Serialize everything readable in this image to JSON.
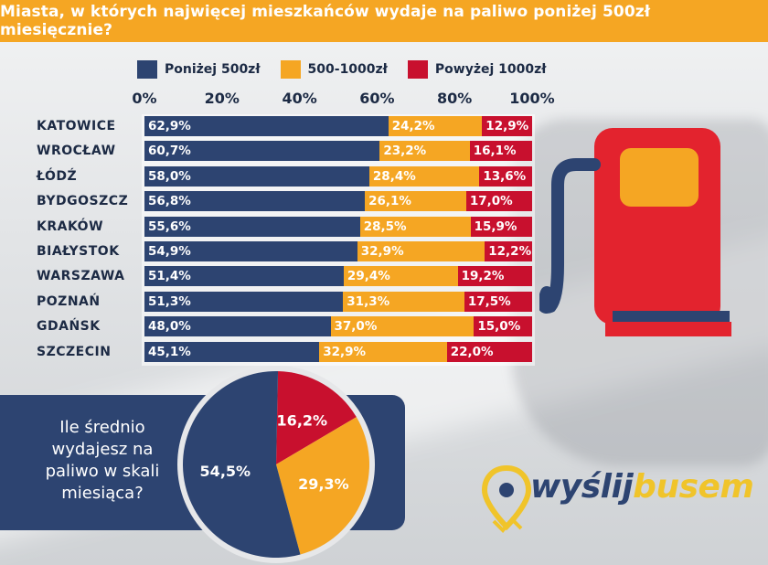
{
  "title": "Miasta, w których najwięcej mieszkańców wydaje na paliwo poniżej 500zł miesięcznie?",
  "colors": {
    "below500": "#2d4471",
    "mid": "#f5a623",
    "above1000": "#c8102e",
    "header": "#f5a623"
  },
  "chart_data": [
    {
      "type": "bar",
      "orientation": "horizontal-stacked-100",
      "categories": [
        "KATOWICE",
        "WROCŁAW",
        "ŁÓDŹ",
        "BYDGOSZCZ",
        "KRAKÓW",
        "BIAŁYSTOK",
        "WARSZAWA",
        "POZNAŃ",
        "GDAŃSK",
        "SZCZECIN"
      ],
      "series": [
        {
          "name": "Poniżej 500zł",
          "values": [
            62.9,
            60.7,
            58.0,
            56.8,
            55.6,
            54.9,
            51.4,
            51.3,
            48.0,
            45.1
          ],
          "labels": [
            "62,9%",
            "60,7%",
            "58,0%",
            "56,8%",
            "55,6%",
            "54,9%",
            "51,4%",
            "51,3%",
            "48,0%",
            "45,1%"
          ]
        },
        {
          "name": "500-1000zł",
          "values": [
            24.2,
            23.2,
            28.4,
            26.1,
            28.5,
            32.9,
            29.4,
            31.3,
            37.0,
            32.9
          ],
          "labels": [
            "24,2%",
            "23,2%",
            "28,4%",
            "26,1%",
            "28,5%",
            "32,9%",
            "29,4%",
            "31,3%",
            "37,0%",
            "32,9%"
          ]
        },
        {
          "name": "Powyżej 1000zł",
          "values": [
            12.9,
            16.1,
            13.6,
            17.0,
            15.9,
            12.2,
            19.2,
            17.5,
            15.0,
            22.0
          ],
          "labels": [
            "12,9%",
            "16,1%",
            "13,6%",
            "17,0%",
            "15,9%",
            "12,2%",
            "19,2%",
            "17,5%",
            "15,0%",
            "22,0%"
          ]
        }
      ],
      "xticks": [
        "0%",
        "20%",
        "40%",
        "60%",
        "80%",
        "100%"
      ],
      "xlim": [
        0,
        100
      ],
      "legend": "top"
    },
    {
      "type": "pie",
      "question": "Ile średnio wydajesz na paliwo w skali miesiąca?",
      "slices": [
        {
          "value": 54.5,
          "label": "54,5%"
        },
        {
          "value": 29.3,
          "label": "29,3%"
        },
        {
          "value": 16.2,
          "label": "16,2%"
        }
      ]
    }
  ],
  "logo": {
    "part1": "wyślij",
    "part2": "busem"
  }
}
